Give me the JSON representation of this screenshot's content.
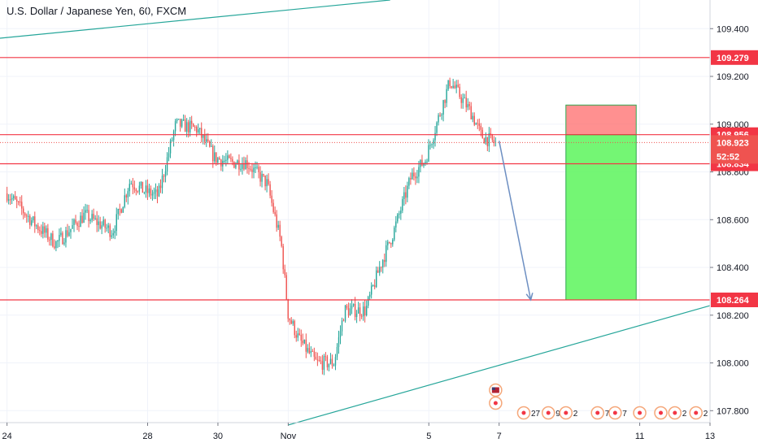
{
  "header": {
    "title": "U.S. Dollar / Japanese Yen, 60, FXCM"
  },
  "chart_data": {
    "type": "candlestick",
    "title": "U.S. Dollar / Japanese Yen, 60, FXCM",
    "symbol": "USDJPY",
    "interval": "60",
    "source": "FXCM",
    "ylim": [
      107.75,
      109.52
    ],
    "y_ticks": [
      109.4,
      109.2,
      109.0,
      108.8,
      108.6,
      108.4,
      108.2,
      108.0,
      107.8
    ],
    "y_tick_labels": [
      "109.400",
      "109.200",
      "109.000",
      "108.800",
      "108.600",
      "108.400",
      "108.200",
      "108.000",
      "107.800"
    ],
    "x_ticks": [
      {
        "label": "24",
        "day": 0
      },
      {
        "label": "28",
        "day": 4
      },
      {
        "label": "30",
        "day": 6
      },
      {
        "label": "Nov",
        "day": 8
      },
      {
        "label": "5",
        "day": 12
      },
      {
        "label": "7",
        "day": 14
      },
      {
        "label": "11",
        "day": 18
      },
      {
        "label": "13",
        "day": 20
      }
    ],
    "x_range_days": [
      -0.2,
      20.0
    ],
    "grid": true,
    "price_levels": [
      {
        "price": 109.279,
        "label": "109.279",
        "color": "#f23645"
      },
      {
        "price": 108.956,
        "label": "108.956",
        "color": "#f23645"
      },
      {
        "price": 108.834,
        "label": "108.834",
        "color": "#f23645"
      },
      {
        "price": 108.264,
        "label": "108.264",
        "color": "#f23645"
      }
    ],
    "current_price": {
      "price": 108.923,
      "label": "108.923",
      "countdown": "52:52"
    },
    "trend_lines": [
      {
        "from": {
          "day": -0.2,
          "price": 109.36
        },
        "to": {
          "day": 10.9,
          "price": 109.52
        }
      },
      {
        "from": {
          "day": 8.0,
          "price": 107.74
        },
        "to": {
          "day": 20.0,
          "price": 108.24
        }
      }
    ],
    "short_position": {
      "entry": 108.956,
      "stop": 109.08,
      "target": 108.264,
      "day_start": 15.9,
      "day_end": 17.9
    },
    "arrow": {
      "from": {
        "day": 14.0,
        "price": 108.93
      },
      "to": {
        "day": 14.9,
        "price": 108.264
      }
    },
    "events": [
      {
        "day": 13.9,
        "row": 1,
        "label": ""
      },
      {
        "day": 13.9,
        "row": 2,
        "label": ""
      },
      {
        "day": 14.7,
        "row": 3,
        "label": "27"
      },
      {
        "day": 15.4,
        "row": 3,
        "label": "9"
      },
      {
        "day": 15.9,
        "row": 3,
        "label": "2"
      },
      {
        "day": 16.8,
        "row": 3,
        "label": "7"
      },
      {
        "day": 17.3,
        "row": 3,
        "label": "7"
      },
      {
        "day": 18.0,
        "row": 3,
        "label": ""
      },
      {
        "day": 18.6,
        "row": 3,
        "label": ""
      },
      {
        "day": 19.0,
        "row": 3,
        "label": "2"
      },
      {
        "day": 19.6,
        "row": 3,
        "label": "2"
      }
    ],
    "candles_anchor_path": [
      [
        0.0,
        108.71
      ],
      [
        0.8,
        108.58
      ],
      [
        1.4,
        108.5
      ],
      [
        2.2,
        108.62
      ],
      [
        3.0,
        108.55
      ],
      [
        3.5,
        108.76
      ],
      [
        3.9,
        108.72
      ],
      [
        4.3,
        108.7
      ],
      [
        4.8,
        109.0
      ],
      [
        5.4,
        108.98
      ],
      [
        5.9,
        108.86
      ],
      [
        6.3,
        108.84
      ],
      [
        6.8,
        108.84
      ],
      [
        7.4,
        108.75
      ],
      [
        7.8,
        108.5
      ],
      [
        8.0,
        108.2
      ],
      [
        8.3,
        108.1
      ],
      [
        8.8,
        108.0
      ],
      [
        9.3,
        108.0
      ],
      [
        9.6,
        108.22
      ],
      [
        10.2,
        108.22
      ],
      [
        10.6,
        108.4
      ],
      [
        11.0,
        108.55
      ],
      [
        11.5,
        108.78
      ],
      [
        11.9,
        108.85
      ],
      [
        12.6,
        109.18
      ],
      [
        13.2,
        109.05
      ],
      [
        13.5,
        108.95
      ],
      [
        13.9,
        108.92
      ]
    ]
  }
}
